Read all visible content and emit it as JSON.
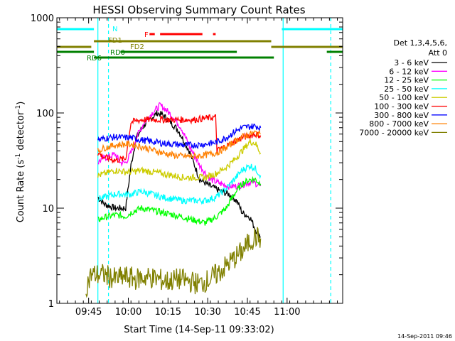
{
  "chart_data": {
    "type": "line",
    "title": "HESSI Observing Summary Count Rates",
    "xlabel": "Start Time (14-Sep-11 09:33:02)",
    "ylabel_main": "Count Rate (s",
    "ylabel_sup1": "-1",
    "ylabel_mid": " detector",
    "ylabel_sup2": "-1",
    "ylabel_end": ")",
    "y_scale": "log",
    "ylim": [
      1,
      1000
    ],
    "xlim_minutes": [
      0,
      108
    ],
    "x_ticks": [
      {
        "label": "09:45",
        "t": 12
      },
      {
        "label": "10:00",
        "t": 27
      },
      {
        "label": "10:15",
        "t": 42
      },
      {
        "label": "10:30",
        "t": 57
      },
      {
        "label": "10:45",
        "t": 72
      },
      {
        "label": "11:00",
        "t": 87
      }
    ],
    "y_ticks": [
      {
        "label": "1",
        "v": 1
      },
      {
        "label": "10",
        "v": 10
      },
      {
        "label": "100",
        "v": 100
      },
      {
        "label": "1000",
        "v": 1000
      }
    ],
    "legend": {
      "placement": "right",
      "header1": "Det 1,3,4,5,6,",
      "header2": "Att 0"
    },
    "series": [
      {
        "name": "3 - 6 keV",
        "color": "#000000",
        "points": [
          [
            15.5,
            13
          ],
          [
            18,
            11
          ],
          [
            22,
            10
          ],
          [
            26,
            10
          ],
          [
            28,
            28
          ],
          [
            30,
            55
          ],
          [
            33,
            75
          ],
          [
            36,
            90
          ],
          [
            38,
            100
          ],
          [
            40,
            95
          ],
          [
            43,
            80
          ],
          [
            46,
            65
          ],
          [
            50,
            40
          ],
          [
            54,
            20
          ],
          [
            58,
            17
          ],
          [
            62,
            15
          ],
          [
            65,
            14
          ],
          [
            68,
            12
          ],
          [
            70,
            9
          ],
          [
            73,
            8
          ],
          [
            75,
            6
          ],
          [
            77,
            5
          ]
        ]
      },
      {
        "name": "6 - 12 keV",
        "color": "#ff00ff",
        "points": [
          [
            15.5,
            30
          ],
          [
            17,
            33
          ],
          [
            20,
            35
          ],
          [
            22,
            37
          ],
          [
            24,
            30
          ],
          [
            26,
            30
          ],
          [
            28,
            38
          ],
          [
            30,
            55
          ],
          [
            33,
            80
          ],
          [
            36,
            100
          ],
          [
            39,
            120
          ],
          [
            41,
            110
          ],
          [
            44,
            90
          ],
          [
            47,
            70
          ],
          [
            50,
            45
          ],
          [
            54,
            28
          ],
          [
            58,
            20
          ],
          [
            62,
            18
          ],
          [
            65,
            17
          ],
          [
            68,
            17
          ],
          [
            71,
            18
          ],
          [
            74,
            19
          ],
          [
            77,
            17
          ]
        ]
      },
      {
        "name": "12 - 25 keV",
        "color": "#00ff00",
        "points": [
          [
            15.5,
            7.5
          ],
          [
            18,
            8
          ],
          [
            22,
            8.5
          ],
          [
            26,
            8.2
          ],
          [
            28,
            9
          ],
          [
            32,
            10
          ],
          [
            36,
            9.5
          ],
          [
            40,
            9
          ],
          [
            44,
            8.5
          ],
          [
            48,
            8
          ],
          [
            52,
            7.5
          ],
          [
            56,
            7
          ],
          [
            60,
            8
          ],
          [
            64,
            10
          ],
          [
            67,
            14
          ],
          [
            70,
            18
          ],
          [
            73,
            20
          ],
          [
            75,
            20
          ],
          [
            77,
            18
          ]
        ]
      },
      {
        "name": "25 - 50 keV",
        "color": "#00ffff",
        "points": [
          [
            15.5,
            12.5
          ],
          [
            18,
            13
          ],
          [
            22,
            14
          ],
          [
            26,
            14
          ],
          [
            28,
            14
          ],
          [
            32,
            15
          ],
          [
            36,
            14
          ],
          [
            40,
            13
          ],
          [
            44,
            12.5
          ],
          [
            48,
            12
          ],
          [
            52,
            12
          ],
          [
            56,
            12
          ],
          [
            60,
            13
          ],
          [
            64,
            16
          ],
          [
            67,
            20
          ],
          [
            70,
            25
          ],
          [
            73,
            28
          ],
          [
            75,
            26
          ],
          [
            77,
            22
          ]
        ]
      },
      {
        "name": "50 - 100 keV",
        "color": "#cccc00",
        "points": [
          [
            15.5,
            22
          ],
          [
            18,
            23
          ],
          [
            22,
            25
          ],
          [
            26,
            24
          ],
          [
            28,
            24
          ],
          [
            32,
            25
          ],
          [
            36,
            24
          ],
          [
            40,
            23
          ],
          [
            44,
            22
          ],
          [
            48,
            21
          ],
          [
            52,
            21
          ],
          [
            56,
            21
          ],
          [
            60,
            23
          ],
          [
            64,
            27
          ],
          [
            67,
            32
          ],
          [
            70,
            40
          ],
          [
            73,
            50
          ],
          [
            75,
            48
          ],
          [
            77,
            38
          ]
        ]
      },
      {
        "name": "100 - 300 keV",
        "color": "#ff0000",
        "points": [
          [
            15.5,
            38
          ],
          [
            18,
            34
          ],
          [
            22,
            32
          ],
          [
            26,
            33
          ],
          [
            28,
            80
          ],
          [
            32,
            85
          ],
          [
            36,
            85
          ],
          [
            40,
            85
          ],
          [
            44,
            85
          ],
          [
            48,
            85
          ],
          [
            52,
            85
          ],
          [
            56,
            88
          ],
          [
            60,
            90
          ],
          [
            60.5,
            40
          ],
          [
            64,
            45
          ],
          [
            67,
            50
          ],
          [
            70,
            55
          ],
          [
            73,
            58
          ],
          [
            75,
            60
          ],
          [
            77,
            58
          ]
        ]
      },
      {
        "name": "300 - 800 keV",
        "color": "#0000ff",
        "points": [
          [
            15.5,
            52
          ],
          [
            18,
            54
          ],
          [
            22,
            56
          ],
          [
            26,
            55
          ],
          [
            28,
            55
          ],
          [
            32,
            52
          ],
          [
            36,
            50
          ],
          [
            40,
            48
          ],
          [
            44,
            47
          ],
          [
            48,
            46
          ],
          [
            52,
            46
          ],
          [
            56,
            47
          ],
          [
            60,
            49
          ],
          [
            64,
            55
          ],
          [
            67,
            63
          ],
          [
            70,
            70
          ],
          [
            73,
            72
          ],
          [
            75,
            73
          ],
          [
            77,
            70
          ]
        ]
      },
      {
        "name": "800 - 7000 keV",
        "color": "#ff8000",
        "points": [
          [
            15.5,
            40
          ],
          [
            18,
            43
          ],
          [
            22,
            46
          ],
          [
            26,
            47
          ],
          [
            28,
            47
          ],
          [
            32,
            44
          ],
          [
            36,
            41
          ],
          [
            40,
            38
          ],
          [
            44,
            36
          ],
          [
            48,
            35
          ],
          [
            52,
            35
          ],
          [
            56,
            36
          ],
          [
            60,
            38
          ],
          [
            64,
            43
          ],
          [
            67,
            50
          ],
          [
            70,
            56
          ],
          [
            73,
            60
          ],
          [
            75,
            62
          ],
          [
            77,
            60
          ]
        ]
      },
      {
        "name": "7000 - 20000 keV",
        "color": "#808000",
        "points": [
          [
            11,
            1.5
          ],
          [
            13,
            2
          ],
          [
            15.5,
            2
          ],
          [
            18,
            2
          ],
          [
            22,
            1.8
          ],
          [
            26,
            1.9
          ],
          [
            30,
            1.8
          ],
          [
            34,
            1.9
          ],
          [
            38,
            1.8
          ],
          [
            42,
            1.7
          ],
          [
            46,
            1.8
          ],
          [
            50,
            1.7
          ],
          [
            54,
            1.6
          ],
          [
            58,
            1.8
          ],
          [
            62,
            2.2
          ],
          [
            66,
            2.8
          ],
          [
            70,
            3.5
          ],
          [
            73,
            4.5
          ],
          [
            75,
            5
          ],
          [
            77,
            4.8
          ]
        ]
      }
    ],
    "flags": [
      {
        "label": "N",
        "color": "#00ffff",
        "segments": [
          [
            0,
            14
          ],
          [
            85,
            108
          ]
        ]
      },
      {
        "label": "F",
        "color": "#ff0000",
        "segments": [
          [
            35,
            37
          ],
          [
            39,
            55
          ],
          [
            59,
            60
          ]
        ]
      },
      {
        "label": "FD1",
        "color": "#808000",
        "segments": [
          [
            14,
            81
          ]
        ]
      },
      {
        "label": "FD2",
        "color": "#808000",
        "segments": [
          [
            0,
            13
          ],
          [
            81,
            108
          ]
        ]
      },
      {
        "label": "RD0",
        "color": "#008000",
        "segments": [
          [
            0,
            14
          ],
          [
            24,
            68
          ],
          [
            102,
            108
          ]
        ]
      },
      {
        "label": "RD6",
        "color": "#008000",
        "segments": [
          [
            14,
            82
          ]
        ]
      }
    ],
    "vlines": [
      {
        "t": 15.5,
        "color": "#00ffff",
        "dash": false
      },
      {
        "t": 19.5,
        "color": "#00ffff",
        "dash": true
      },
      {
        "t": 85.5,
        "color": "#00ffff",
        "dash": false
      },
      {
        "t": 103.5,
        "color": "#00ffff",
        "dash": true
      }
    ]
  },
  "footer": {
    "timestamp": "14-Sep-2011 09:46"
  }
}
